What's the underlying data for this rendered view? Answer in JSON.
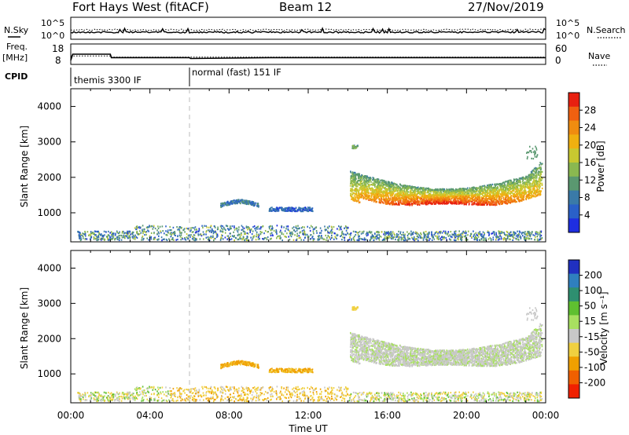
{
  "header": {
    "station": "Fort Hays West (fitACF)",
    "beam": "Beam 12",
    "date": "27/Nov/2019"
  },
  "side_labels": {
    "nsky": "N.Sky",
    "nsearch": "N.Search",
    "freq": "Freq.",
    "freq_unit": "[MHz]",
    "nave": "Nave",
    "cpid": "CPID",
    "nsky_ticks": [
      "10^5",
      "10^0"
    ],
    "nsearch_ticks": [
      "10^5",
      "10^0"
    ],
    "freq_ticks": [
      "18",
      "8"
    ],
    "nave_ticks": [
      "60",
      "0"
    ]
  },
  "cpid_segments": [
    {
      "label": "themis 3300 IF",
      "start_hour": 0
    },
    {
      "label": "normal (fast) 151 IF",
      "start_hour": 6
    }
  ],
  "freq_series": {
    "hours": [
      0,
      0.1,
      2,
      2.05,
      4,
      6,
      6.05,
      10,
      24
    ],
    "values": [
      9.5,
      13,
      13,
      11,
      11,
      11,
      10.5,
      11,
      11
    ]
  },
  "xaxis": {
    "label": "Time UT",
    "ticks": [
      "00:00",
      "04:00",
      "08:00",
      "12:00",
      "16:00",
      "20:00",
      "00:00"
    ],
    "tick_hours": [
      0,
      4,
      8,
      12,
      16,
      20,
      24
    ],
    "range": [
      0,
      24
    ]
  },
  "panels": {
    "power": {
      "ylabel": "Slant Range [km]",
      "yticks": [
        "1000",
        "2000",
        "3000",
        "4000"
      ],
      "ytick_values": [
        1000,
        2000,
        3000,
        4000
      ],
      "ylim": [
        180,
        4500
      ],
      "colorbar_label": "Power [dB]",
      "colorbar_ticks": [
        "4",
        "8",
        "12",
        "16",
        "20",
        "24",
        "28"
      ],
      "colorbar_colors": [
        "#1e2ee0",
        "#2a60c8",
        "#3a7aa8",
        "#5a9870",
        "#8ab850",
        "#c8c830",
        "#f0b010",
        "#f08c10",
        "#f06010",
        "#e82010"
      ]
    },
    "velocity": {
      "ylabel": "Slant Range [km]",
      "yticks": [
        "1000",
        "2000",
        "3000",
        "4000"
      ],
      "ytick_values": [
        1000,
        2000,
        3000,
        4000
      ],
      "ylim": [
        180,
        4500
      ],
      "colorbar_label": "Velocity [m s⁻¹]",
      "colorbar_ticks": [
        "200",
        "100",
        "50",
        "15",
        "-15",
        "-50",
        "-100",
        "-200"
      ],
      "colorbar_colors": [
        "#2030c0",
        "#2f7fbe",
        "#2e8f70",
        "#5fc030",
        "#a8e060",
        "#c8c8c8",
        "#f0d040",
        "#f0a000",
        "#f06000",
        "#f02000"
      ]
    }
  },
  "chart_data": {
    "type": "heatmap",
    "title": "Fort Hays West (fitACF)  Beam 12  27/Nov/2019",
    "xlabel": "Time UT",
    "ylabel": "Slant Range [km]",
    "xlim": [
      0,
      24
    ],
    "ylim": [
      180,
      4500
    ],
    "features": [
      {
        "name": "near-range ground echoes",
        "hours": [
          0.5,
          23.5
        ],
        "range_km": [
          200,
          450
        ],
        "power_dB": 8,
        "velocity_ms": -20
      },
      {
        "name": "mid-range patch",
        "hours": [
          7.5,
          9.5
        ],
        "range_km": [
          1100,
          1350
        ],
        "power_dB": 8,
        "velocity_ms": -60
      },
      {
        "name": "mid-range patch 2",
        "hours": [
          10,
          12.2
        ],
        "range_km": [
          1000,
          1150
        ],
        "power_dB": 6,
        "velocity_ms": -60
      },
      {
        "name": "main ionospheric scatter band",
        "hours": [
          14.1,
          23.8
        ],
        "range_km": [
          1000,
          2500
        ],
        "power_dB": 22,
        "velocity_ms": 0
      },
      {
        "name": "isolated echo",
        "hours": [
          14.3,
          14.5
        ],
        "range_km": [
          2800,
          2900
        ],
        "power_dB": 10,
        "velocity_ms": -30
      }
    ]
  }
}
